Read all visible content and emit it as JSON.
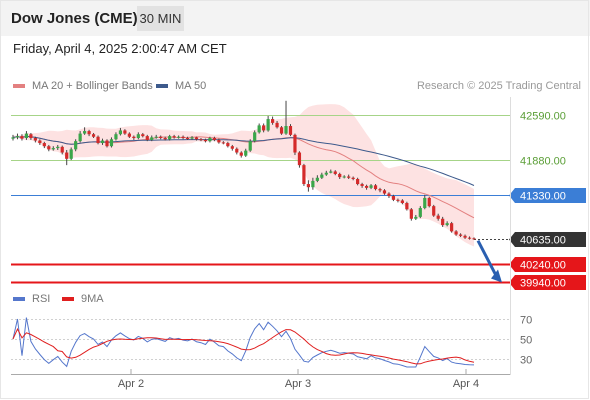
{
  "header": {
    "title": "Dow Jones (CME)",
    "timeframe": "30 MIN",
    "datetime": "Friday, April 4, 2025 2:00:47 AM CET"
  },
  "legend": {
    "ma20_label": "MA 20 + Bollinger Bands",
    "ma50_label": "MA 50",
    "credit": "Research © 2025 Trading Central",
    "rsi_label": "RSI",
    "rsi9_label": "9MA"
  },
  "colors": {
    "candle_up": "#3aa64a",
    "candle_down": "#d42a2a",
    "ma20": "#e38080",
    "ma50": "#3d5a8c",
    "bollinger_fill": "#fde2e2",
    "resistance": "#a6d488",
    "pivot": "#3b7ed6",
    "support": "#e5161a",
    "rsi": "#5577cc",
    "rsi9": "#e01f1f"
  },
  "chart_data": [
    {
      "type": "candlestick",
      "x_labels": [
        "Apr 2",
        "Apr 3",
        "Apr 4"
      ],
      "levels": [
        {
          "label": "42590.00",
          "value": 42590,
          "kind": "resistance"
        },
        {
          "label": "41880.00",
          "value": 41880,
          "kind": "resistance"
        },
        {
          "label": "41330.00",
          "value": 41330,
          "kind": "pivot"
        },
        {
          "label": "40635.00",
          "value": 40635,
          "kind": "last"
        },
        {
          "label": "40240.00",
          "value": 40240,
          "kind": "support"
        },
        {
          "label": "39940.00",
          "value": 39940,
          "kind": "support"
        }
      ],
      "ylim": [
        39900,
        42880
      ],
      "series": [
        {
          "name": "MA 20 + Bollinger Bands"
        },
        {
          "name": "MA 50"
        }
      ],
      "close": [
        42240,
        42260,
        42220,
        42300,
        42230,
        42190,
        42150,
        42100,
        42050,
        42070,
        42090,
        42000,
        41900,
        42050,
        42180,
        42300,
        42340,
        42290,
        42250,
        42150,
        42190,
        42100,
        42210,
        42290,
        42350,
        42300,
        42250,
        42230,
        42290,
        42260,
        42200,
        42240,
        42250,
        42230,
        42210,
        42260,
        42240,
        42250,
        42230,
        42220,
        42240,
        42210,
        42200,
        42180,
        42230,
        42200,
        42160,
        42150,
        42100,
        42060,
        42000,
        41950,
        42030,
        42180,
        42320,
        42430,
        42350,
        42530,
        42470,
        42400,
        42300,
        42420,
        42280,
        42000,
        41800,
        41500,
        41450,
        41550,
        41600,
        41650,
        41680,
        41700,
        41660,
        41610,
        41620,
        41600,
        41580,
        41500,
        41470,
        41440,
        41480,
        41420,
        41400,
        41350,
        41310,
        41250,
        41240,
        41200,
        41100,
        40950,
        40980,
        41120,
        41280,
        41150,
        41000,
        40950,
        40850,
        40880,
        40750,
        40700,
        40680,
        40650,
        40640,
        40635
      ],
      "open": [
        42220,
        42240,
        42260,
        42230,
        42290,
        42230,
        42190,
        42150,
        42100,
        42050,
        42070,
        42090,
        42000,
        41900,
        42050,
        42180,
        42300,
        42340,
        42290,
        42250,
        42150,
        42190,
        42100,
        42210,
        42290,
        42350,
        42300,
        42250,
        42230,
        42290,
        42260,
        42200,
        42240,
        42250,
        42230,
        42210,
        42260,
        42240,
        42250,
        42230,
        42220,
        42240,
        42210,
        42200,
        42180,
        42230,
        42200,
        42160,
        42150,
        42100,
        42060,
        42000,
        41950,
        42030,
        42180,
        42320,
        42430,
        42350,
        42530,
        42470,
        42400,
        42300,
        42420,
        42280,
        42000,
        41800,
        41500,
        41450,
        41550,
        41600,
        41650,
        41680,
        41700,
        41660,
        41610,
        41620,
        41600,
        41580,
        41500,
        41470,
        41440,
        41480,
        41420,
        41400,
        41350,
        41310,
        41250,
        41240,
        41200,
        41100,
        40950,
        40980,
        41120,
        41280,
        41150,
        41000,
        40950,
        40850,
        40880,
        40750,
        40700,
        40680,
        40650,
        40640
      ],
      "high": [
        42280,
        42300,
        42290,
        42340,
        42310,
        42250,
        42210,
        42170,
        42120,
        42100,
        42120,
        42110,
        42040,
        42080,
        42210,
        42340,
        42400,
        42360,
        42310,
        42270,
        42220,
        42210,
        42240,
        42320,
        42390,
        42370,
        42320,
        42270,
        42320,
        42310,
        42280,
        42270,
        42280,
        42270,
        42250,
        42280,
        42280,
        42270,
        42270,
        42250,
        42260,
        42250,
        42230,
        42220,
        42250,
        42250,
        42220,
        42180,
        42170,
        42120,
        42080,
        42020,
        42060,
        42210,
        42350,
        42460,
        42460,
        42580,
        42570,
        42500,
        42420,
        42820,
        42450,
        42300,
        42020,
        41820,
        41560,
        41600,
        41640,
        41680,
        41710,
        41730,
        41720,
        41680,
        41640,
        41650,
        41620,
        41600,
        41520,
        41490,
        41500,
        41500,
        41440,
        41420,
        41370,
        41330,
        41270,
        41260,
        41220,
        41120,
        41010,
        41150,
        41330,
        41300,
        41170,
        41030,
        40980,
        40910,
        40900,
        40770,
        40720,
        40700,
        40670,
        40655
      ],
      "low": [
        42190,
        42210,
        42190,
        42200,
        42200,
        42160,
        42120,
        42070,
        42020,
        42030,
        42040,
        41970,
        41800,
        41880,
        42020,
        42160,
        42280,
        42260,
        42230,
        42130,
        42120,
        42080,
        42080,
        42190,
        42270,
        42280,
        42230,
        42200,
        42210,
        42240,
        42180,
        42180,
        42220,
        42210,
        42190,
        42190,
        42220,
        42220,
        42210,
        42200,
        42200,
        42190,
        42180,
        42160,
        42160,
        42180,
        42140,
        42130,
        42080,
        42030,
        41970,
        41920,
        41930,
        42010,
        42160,
        42300,
        42320,
        42330,
        42440,
        42380,
        42280,
        42280,
        42260,
        41960,
        41760,
        41470,
        41380,
        41410,
        41530,
        41580,
        41630,
        41670,
        41640,
        41580,
        41590,
        41580,
        41560,
        41480,
        41440,
        41410,
        41420,
        41400,
        41370,
        41330,
        41280,
        41230,
        41210,
        41180,
        41080,
        40920,
        40930,
        40960,
        41100,
        41130,
        40980,
        40920,
        40820,
        40830,
        40730,
        40680,
        40660,
        40630,
        40620,
        40615
      ]
    },
    {
      "type": "line",
      "ylim": [
        20,
        80
      ],
      "y_ticks": [
        "70",
        "50",
        "30"
      ],
      "series": [
        {
          "name": "RSI"
        },
        {
          "name": "9MA"
        }
      ]
    }
  ]
}
